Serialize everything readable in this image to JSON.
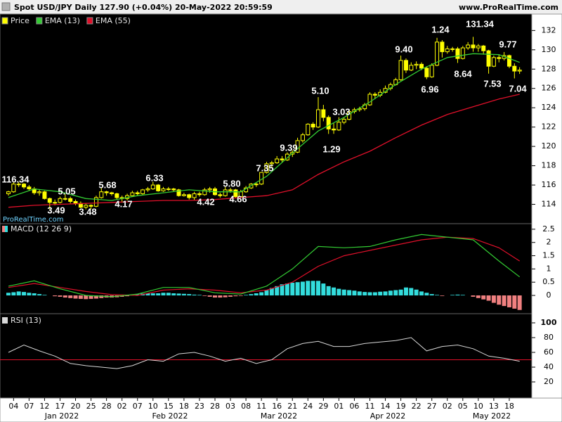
{
  "header": {
    "title": "Spot USD/JPY Daily 127.90 (+0.04%) 20-May-2022 20:59:59",
    "site": "www.ProRealTime.com"
  },
  "watermark": "ProRealTime.com",
  "chart_data": [
    {
      "type": "candlestick",
      "ylim": [
        112,
        133.7
      ],
      "yticks": [
        114,
        116,
        118,
        120,
        122,
        124,
        126,
        128,
        130,
        132
      ],
      "series": [
        {
          "name": "Price",
          "color": "#ffff00",
          "open": [
            115.1,
            115.3,
            116.1,
            116.1,
            115.8,
            115.6,
            115.2,
            115.3,
            114.6,
            114.2,
            114.2,
            114.6,
            114.6,
            114.3,
            114.1,
            113.7,
            113.9,
            113.8,
            114.7,
            115.3,
            115.2,
            115.1,
            114.7,
            114.6,
            114.9,
            115.2,
            115.1,
            115.5,
            115.6,
            116.0,
            115.4,
            115.6,
            115.6,
            115.5,
            114.9,
            115.0,
            114.7,
            115.1,
            115.0,
            115.5,
            115.6,
            115.0,
            114.9,
            115.5,
            115.5,
            114.8,
            115.3,
            115.7,
            116.1,
            116.1,
            117.3,
            118.2,
            118.3,
            118.7,
            118.6,
            119.2,
            119.4,
            120.6,
            121.2,
            122.3,
            122.0,
            123.8,
            123.0,
            121.8,
            121.7,
            122.5,
            122.8,
            123.6,
            123.8,
            123.9,
            124.3,
            125.4,
            125.3,
            125.6,
            126.0,
            126.4,
            126.9,
            128.9,
            127.9,
            128.4,
            128.5,
            128.1,
            127.2,
            128.4,
            130.8,
            129.8,
            130.1,
            130.1,
            129.1,
            130.2,
            130.5,
            130.2,
            130.4,
            129.9,
            128.3,
            129.2,
            129.1,
            129.4,
            128.3,
            127.8
          ],
          "high": [
            115.4,
            116.34,
            116.3,
            116.2,
            116.0,
            115.8,
            115.5,
            115.4,
            114.7,
            114.5,
            114.8,
            115.05,
            114.8,
            114.5,
            114.3,
            114.1,
            114.0,
            114.9,
            115.68,
            115.4,
            115.3,
            115.2,
            114.9,
            115.1,
            115.4,
            115.4,
            115.6,
            115.8,
            116.33,
            116.1,
            115.8,
            115.8,
            115.7,
            115.6,
            115.2,
            115.1,
            115.3,
            115.3,
            115.7,
            115.8,
            115.8,
            115.2,
            115.8,
            115.7,
            115.6,
            115.5,
            115.9,
            116.2,
            116.3,
            117.35,
            118.4,
            118.5,
            119.0,
            119.0,
            119.39,
            119.6,
            120.9,
            121.4,
            122.4,
            122.5,
            125.1,
            124.3,
            123.2,
            122.4,
            123.03,
            123.0,
            123.8,
            124.0,
            124.1,
            124.5,
            125.6,
            125.6,
            125.9,
            126.3,
            126.6,
            127.1,
            129.4,
            129.1,
            128.7,
            128.8,
            128.7,
            128.3,
            128.6,
            131.24,
            131.0,
            130.4,
            130.3,
            130.3,
            130.4,
            130.8,
            131.34,
            130.6,
            130.5,
            130.0,
            129.4,
            129.5,
            129.77,
            129.5,
            128.6,
            128.2
          ],
          "low": [
            114.9,
            115.2,
            115.8,
            115.6,
            115.4,
            115.0,
            114.9,
            114.5,
            113.49,
            113.9,
            114.1,
            114.4,
            114.1,
            113.9,
            113.6,
            113.48,
            113.5,
            113.7,
            114.6,
            114.9,
            114.9,
            114.5,
            114.17,
            114.4,
            114.8,
            114.9,
            115.0,
            115.3,
            115.5,
            115.3,
            115.3,
            115.4,
            115.3,
            114.8,
            114.8,
            114.5,
            114.42,
            114.8,
            114.9,
            115.2,
            114.9,
            114.7,
            114.8,
            115.2,
            114.66,
            114.7,
            115.2,
            115.6,
            115.8,
            116.0,
            117.2,
            117.8,
            118.2,
            118.3,
            118.5,
            118.9,
            119.3,
            120.4,
            121.1,
            121.7,
            121.9,
            122.6,
            121.29,
            121.3,
            121.6,
            122.3,
            122.7,
            123.4,
            123.6,
            123.7,
            124.2,
            124.9,
            125.1,
            125.5,
            125.8,
            126.3,
            126.8,
            127.6,
            127.8,
            128.0,
            127.9,
            126.96,
            127.1,
            128.3,
            129.2,
            129.6,
            129.8,
            128.64,
            129.0,
            130.0,
            129.8,
            129.8,
            129.5,
            127.53,
            128.2,
            128.7,
            128.9,
            128.1,
            127.04,
            127.5
          ],
          "close": [
            115.3,
            116.1,
            116.1,
            115.8,
            115.6,
            115.2,
            115.3,
            114.6,
            114.2,
            114.2,
            114.6,
            114.6,
            114.3,
            114.1,
            113.7,
            113.9,
            113.8,
            114.7,
            115.3,
            115.2,
            115.1,
            114.7,
            114.6,
            114.9,
            115.2,
            115.1,
            115.5,
            115.6,
            116.0,
            115.4,
            115.6,
            115.6,
            115.5,
            114.9,
            115.0,
            114.7,
            115.1,
            115.0,
            115.5,
            115.6,
            115.0,
            114.9,
            115.5,
            115.5,
            114.8,
            115.3,
            115.7,
            116.1,
            116.1,
            117.3,
            118.2,
            118.3,
            118.7,
            118.6,
            119.2,
            119.4,
            120.6,
            121.2,
            122.3,
            122.0,
            123.8,
            123.0,
            121.8,
            121.7,
            122.5,
            122.8,
            123.6,
            123.8,
            123.9,
            124.3,
            125.4,
            125.3,
            125.6,
            126.0,
            126.4,
            126.9,
            128.9,
            127.9,
            128.4,
            128.5,
            128.1,
            127.2,
            128.4,
            130.8,
            129.8,
            130.1,
            130.1,
            129.1,
            130.2,
            130.5,
            130.2,
            130.4,
            129.9,
            128.3,
            129.2,
            129.1,
            129.4,
            128.3,
            127.8,
            127.9
          ]
        },
        {
          "name": "EMA (13)",
          "color": "#33cc33",
          "x": [
            0,
            5,
            10,
            15,
            20,
            25,
            30,
            35,
            40,
            45,
            50,
            55,
            60,
            65,
            70,
            75,
            80,
            85,
            90,
            95,
            99
          ],
          "values": [
            114.7,
            115.6,
            115.3,
            114.6,
            114.4,
            114.9,
            115.2,
            115.5,
            115.3,
            115.3,
            116.9,
            119.3,
            121.6,
            123.0,
            124.6,
            126.4,
            128.0,
            129.2,
            129.6,
            129.5,
            128.7
          ]
        },
        {
          "name": "EMA (55)",
          "color": "#e0102a",
          "x": [
            0,
            5,
            10,
            15,
            20,
            25,
            30,
            35,
            40,
            45,
            50,
            55,
            60,
            65,
            70,
            75,
            80,
            85,
            90,
            95,
            99
          ],
          "values": [
            113.7,
            113.9,
            114.0,
            114.1,
            114.2,
            114.3,
            114.4,
            114.4,
            114.5,
            114.7,
            114.9,
            115.5,
            117.1,
            118.4,
            119.5,
            120.9,
            122.2,
            123.3,
            124.1,
            124.9,
            125.4
          ]
        }
      ],
      "annotations": [
        "116.34",
        "5.05",
        "3.49",
        "3.48",
        "5.68",
        "4.17",
        "6.33",
        "4.42",
        "5.80",
        "4.66",
        "7.35",
        "9.39",
        "5.10",
        "3.03",
        "1.29",
        "9.40",
        "6.96",
        "1.24",
        "131.34",
        "8.64",
        "9.77",
        "7.53",
        "7.04"
      ]
    },
    {
      "type": "macd",
      "title": "MACD (12 26 9)",
      "ylim": [
        -0.69,
        2.71
      ],
      "yticks": [
        0,
        0.5,
        1,
        1.5,
        2,
        2.5
      ],
      "macd": {
        "color": "#33cc33",
        "x": [
          0,
          5,
          10,
          15,
          20,
          25,
          30,
          35,
          40,
          45,
          50,
          55,
          60,
          65,
          70,
          75,
          80,
          85,
          90,
          95,
          99
        ],
        "values": [
          0.35,
          0.55,
          0.25,
          0.0,
          -0.05,
          0.05,
          0.3,
          0.3,
          0.1,
          0.05,
          0.35,
          1.0,
          1.85,
          1.8,
          1.85,
          2.1,
          2.3,
          2.2,
          2.1,
          1.3,
          0.7
        ]
      },
      "signal": {
        "color": "#e0102a",
        "x": [
          0,
          5,
          10,
          15,
          20,
          25,
          30,
          35,
          40,
          45,
          50,
          55,
          60,
          65,
          70,
          75,
          80,
          85,
          90,
          95,
          99
        ],
        "values": [
          0.3,
          0.45,
          0.3,
          0.15,
          0.03,
          0.0,
          0.2,
          0.25,
          0.2,
          0.1,
          0.2,
          0.5,
          1.1,
          1.5,
          1.7,
          1.9,
          2.1,
          2.2,
          2.15,
          1.8,
          1.3
        ]
      },
      "histogram": {
        "color": "#33dddd",
        "negative_color": "#f08080",
        "values": [
          0.1,
          0.12,
          0.15,
          0.13,
          0.1,
          0.08,
          0.05,
          0.02,
          0,
          -0.03,
          -0.05,
          -0.08,
          -0.1,
          -0.12,
          -0.13,
          -0.14,
          -0.13,
          -0.12,
          -0.1,
          -0.08,
          -0.08,
          -0.07,
          -0.05,
          -0.03,
          0,
          0.04,
          0.07,
          0.08,
          0.08,
          0.08,
          0.1,
          0.1,
          0.08,
          0.07,
          0.06,
          0.05,
          0.03,
          0.02,
          -0.02,
          -0.05,
          -0.08,
          -0.08,
          -0.07,
          -0.05,
          -0.03,
          -0.02,
          0.02,
          0.05,
          0.08,
          0.12,
          0.2,
          0.28,
          0.35,
          0.42,
          0.45,
          0.48,
          0.5,
          0.52,
          0.55,
          0.55,
          0.55,
          0.45,
          0.35,
          0.3,
          0.25,
          0.22,
          0.2,
          0.18,
          0.15,
          0.13,
          0.12,
          0.12,
          0.14,
          0.15,
          0.18,
          0.2,
          0.22,
          0.3,
          0.28,
          0.22,
          0.15,
          0.1,
          0.05,
          0.02,
          -0.02,
          0,
          0.02,
          0.03,
          0.02,
          0,
          -0.05,
          -0.1,
          -0.15,
          -0.2,
          -0.28,
          -0.35,
          -0.4,
          -0.45,
          -0.5,
          -0.55
        ]
      }
    },
    {
      "type": "rsi",
      "title": "RSI (13)",
      "ylim": [
        -1.9,
        112.4
      ],
      "yticks": [
        20,
        40,
        60,
        80,
        100
      ],
      "level": 50,
      "level_color": "#e0102a",
      "color": "#d8d8d8",
      "x": [
        0,
        3,
        6,
        9,
        12,
        15,
        18,
        21,
        24,
        27,
        30,
        33,
        36,
        39,
        42,
        45,
        48,
        51,
        54,
        57,
        60,
        63,
        66,
        69,
        72,
        75,
        78,
        81,
        84,
        87,
        90,
        93,
        96,
        99
      ],
      "values": [
        60,
        70,
        62,
        55,
        45,
        42,
        40,
        38,
        42,
        50,
        48,
        58,
        60,
        55,
        48,
        52,
        45,
        50,
        65,
        72,
        75,
        68,
        68,
        72,
        74,
        76,
        80,
        62,
        68,
        70,
        65,
        55,
        52,
        48
      ],
      "xlim": [
        -1.63,
        101.36
      ],
      "xticks": [
        {
          "value": 1,
          "label": "04"
        },
        {
          "value": 4,
          "label": "07"
        },
        {
          "value": 7,
          "label": "12"
        },
        {
          "value": 10,
          "label": "17"
        },
        {
          "value": 13,
          "label": "20"
        },
        {
          "value": 16,
          "label": "25"
        },
        {
          "value": 19,
          "label": "28"
        },
        {
          "value": 22,
          "label": "02"
        },
        {
          "value": 25,
          "label": "07"
        },
        {
          "value": 28,
          "label": "10"
        },
        {
          "value": 31,
          "label": "15"
        },
        {
          "value": 34,
          "label": "18"
        },
        {
          "value": 37,
          "label": "23"
        },
        {
          "value": 40,
          "label": "28"
        },
        {
          "value": 43,
          "label": "03"
        },
        {
          "value": 46,
          "label": "08"
        },
        {
          "value": 49,
          "label": "11"
        },
        {
          "value": 52,
          "label": "16"
        },
        {
          "value": 55,
          "label": "21"
        },
        {
          "value": 58,
          "label": "24"
        },
        {
          "value": 61,
          "label": "29"
        },
        {
          "value": 64,
          "label": "01"
        },
        {
          "value": 67,
          "label": "06"
        },
        {
          "value": 70,
          "label": "11"
        },
        {
          "value": 73,
          "label": "14"
        },
        {
          "value": 76,
          "label": "19"
        },
        {
          "value": 79,
          "label": "22"
        },
        {
          "value": 82,
          "label": "27"
        },
        {
          "value": 85,
          "label": "02"
        },
        {
          "value": 88,
          "label": "05"
        },
        {
          "value": 91,
          "label": "10"
        },
        {
          "value": 94,
          "label": "13"
        },
        {
          "value": 97,
          "label": "18"
        }
      ],
      "months": [
        "Jan 2022",
        "Feb 2022",
        "Mar 2022",
        "Apr 2022",
        "May 2022"
      ]
    }
  ]
}
